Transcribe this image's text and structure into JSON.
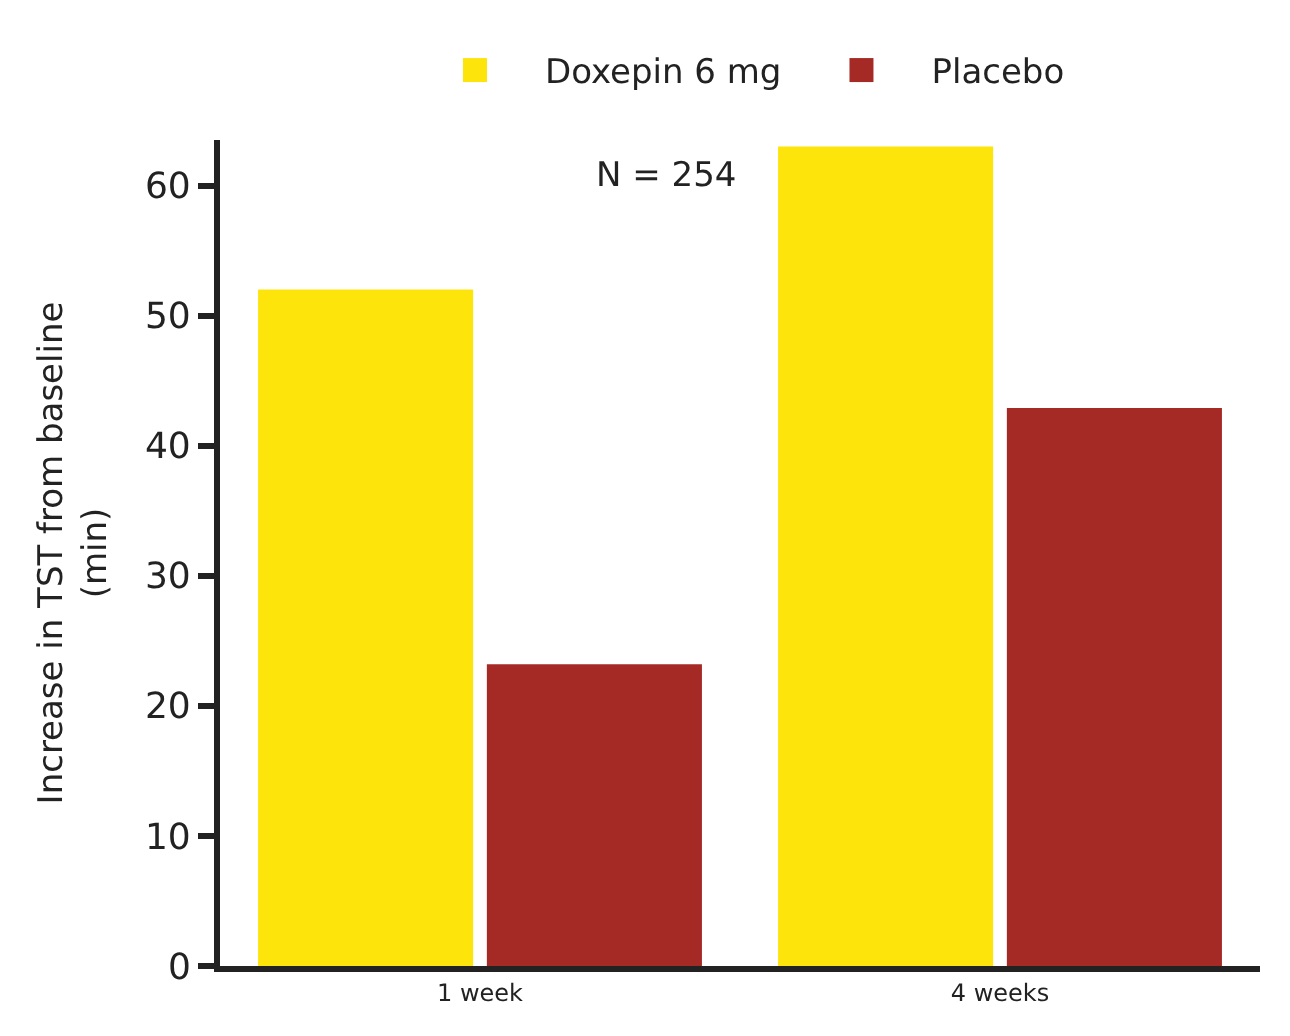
{
  "chart_data": {
    "type": "bar",
    "categories": [
      "1 week",
      "4 weeks"
    ],
    "ylabel": "Increase in TST from baseline\n(min)",
    "series": [
      {
        "name": "Doxepin 6 mg",
        "color": "#fde50c",
        "values": [
          52.0,
          63.0
        ]
      },
      {
        "name": "Placebo",
        "color": "#a52a26",
        "values": [
          23.2,
          42.9
        ]
      }
    ],
    "ylim": [
      0,
      63.5
    ],
    "yticks": [
      0,
      10,
      20,
      30,
      40,
      50,
      60
    ],
    "legend": "top",
    "annotations": [
      "N = 254"
    ]
  }
}
